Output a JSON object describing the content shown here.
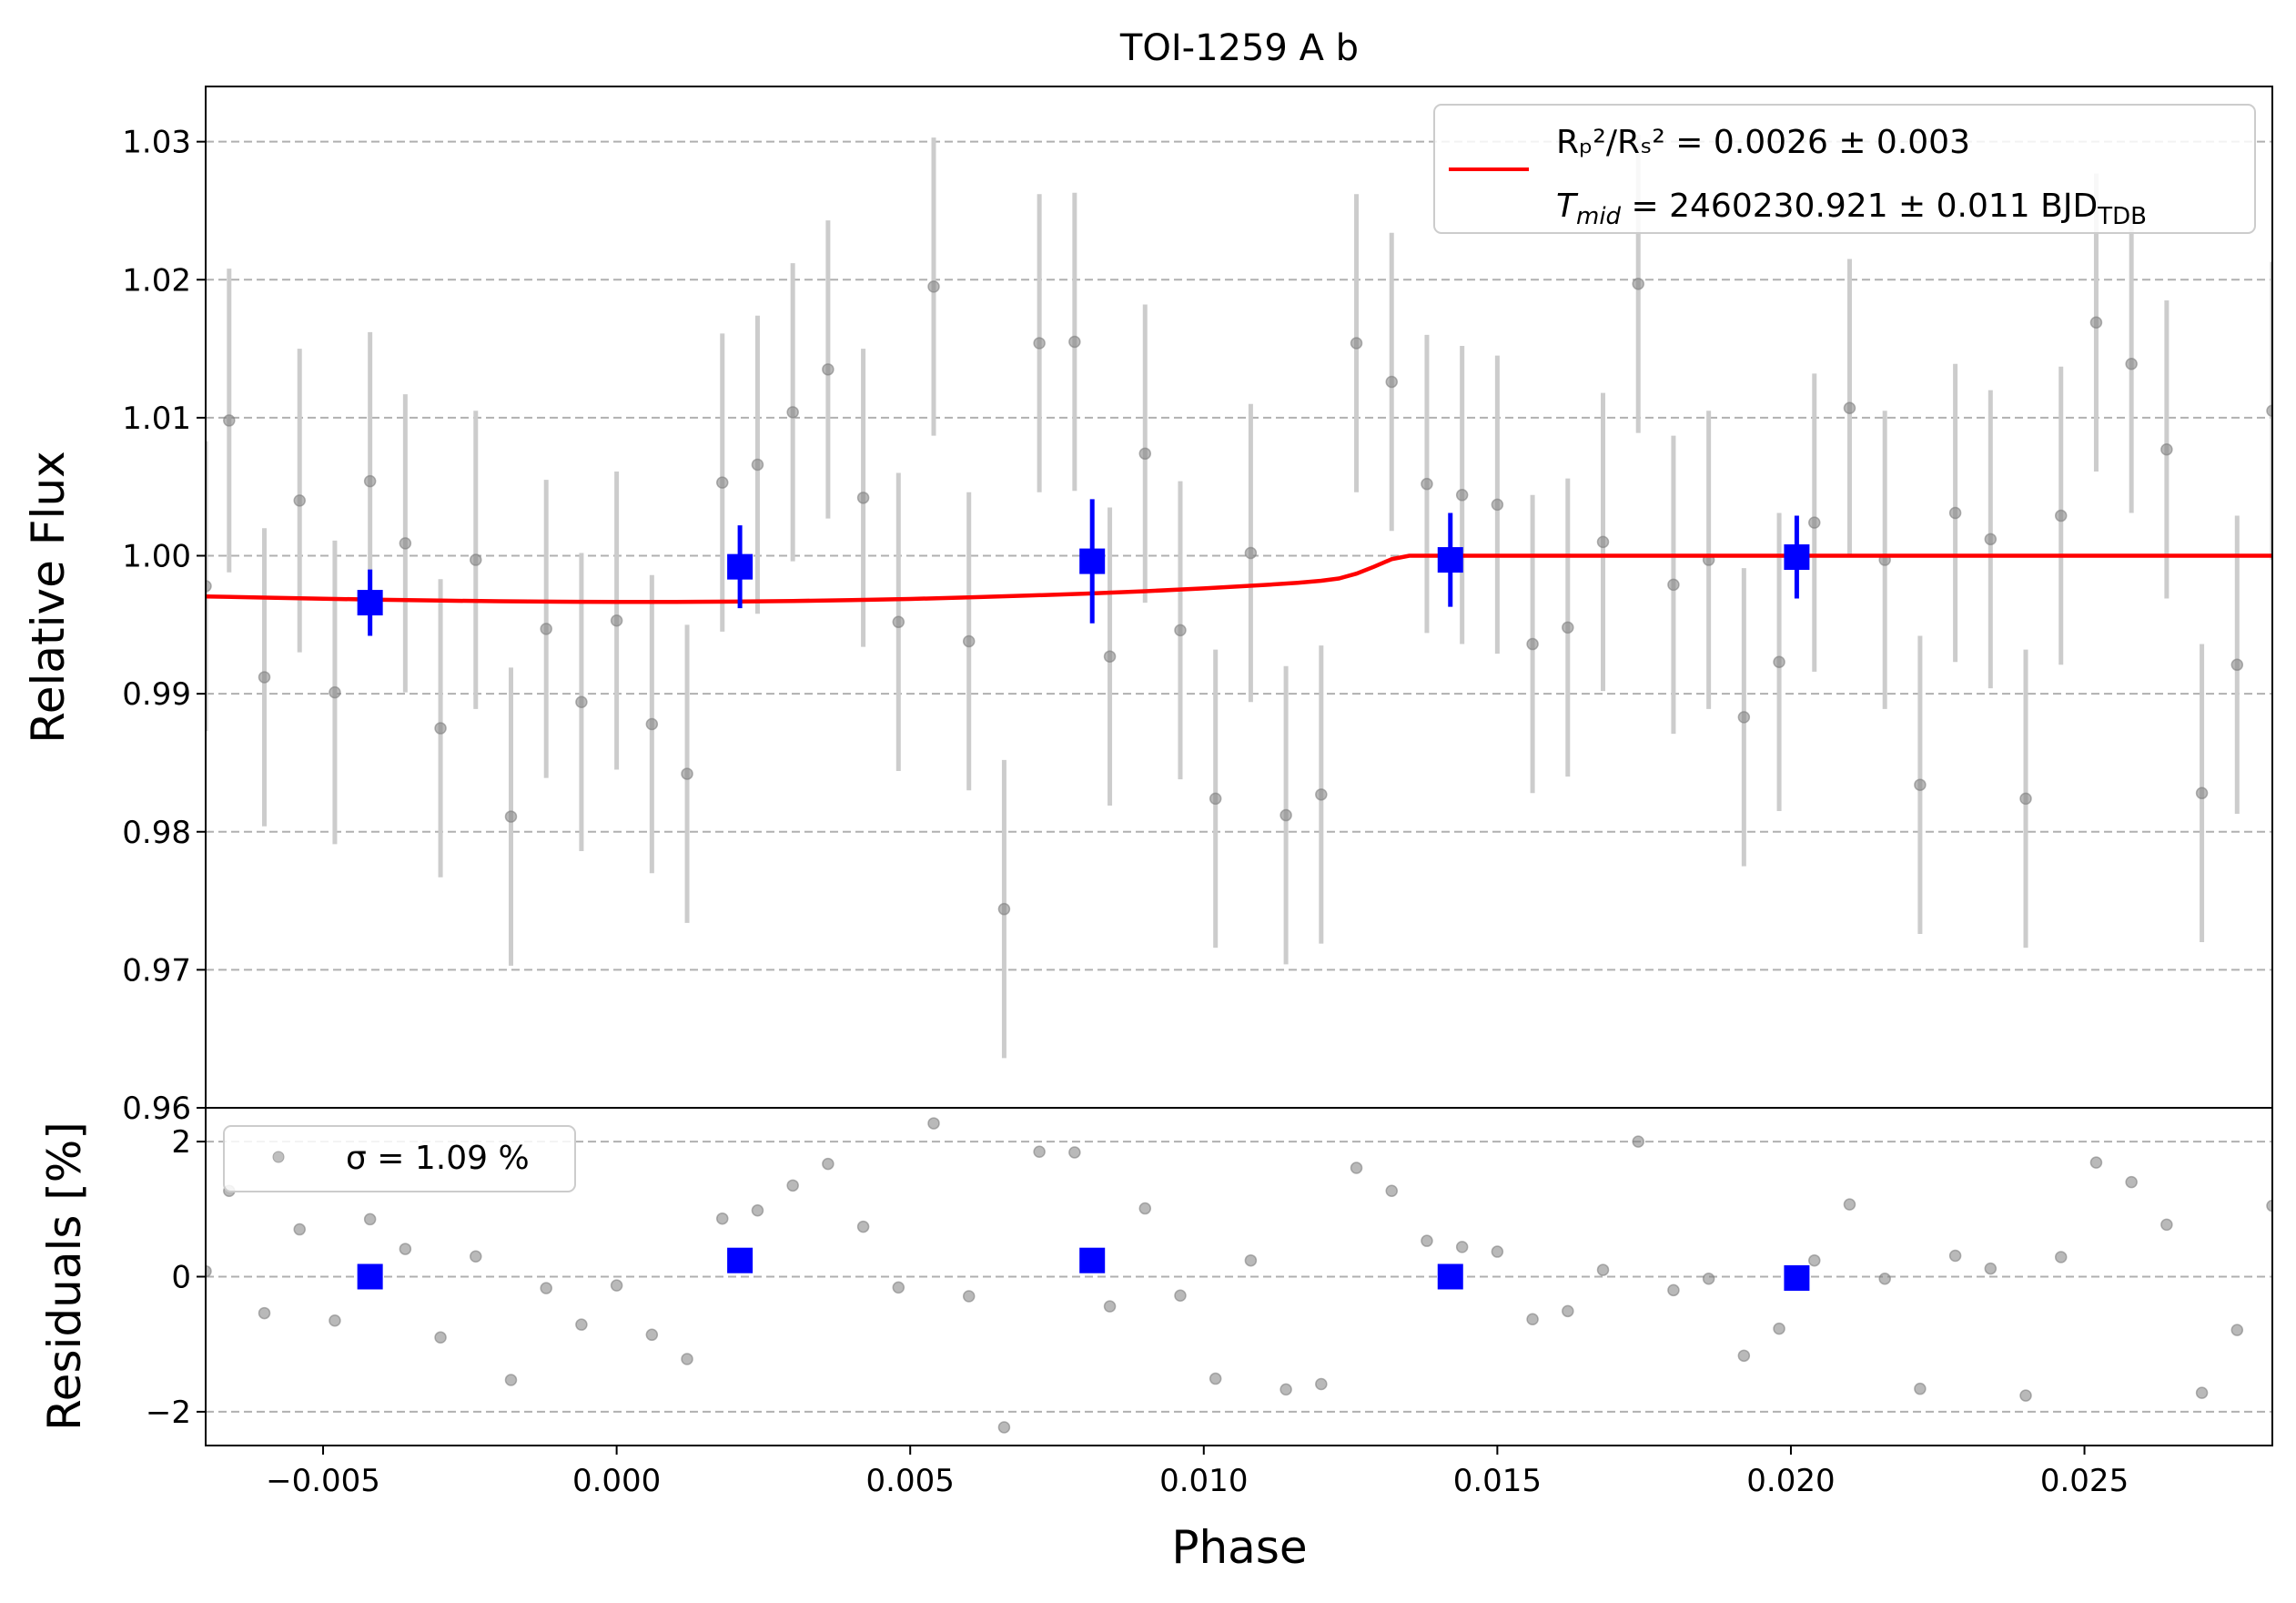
{
  "chart_data": [
    {
      "type": "scatter",
      "panel": "main",
      "title": "TOI-1259 A b",
      "xlabel": "",
      "ylabel": "Relative Flux",
      "xlim": [
        -0.007,
        0.0282
      ],
      "ylim": [
        0.96,
        1.034
      ],
      "yticks": [
        0.96,
        0.97,
        0.98,
        0.99,
        1.0,
        1.01,
        1.02,
        1.03
      ],
      "ytick_labels": [
        "0.96",
        "0.97",
        "0.98",
        "0.99",
        "1.00",
        "1.01",
        "1.02",
        "1.03"
      ],
      "grid": "horizontal dashed",
      "legend_position": "upper right",
      "legend": {
        "line1": "Rₚ²/Rₛ² = 0.0026 ± 0.003",
        "line2_prefix": "T",
        "line2_sub": "mid",
        "line2_mid": " = 2460230.921 ± 0.011 BJD",
        "line2_suffix_sub": "TDB"
      },
      "colors": {
        "data": "#808080",
        "errorbar": "#cccccc",
        "binned": "#0000ff",
        "model": "#ff0000",
        "grid": "#b0b0b0"
      },
      "data_points": {
        "x": [
          -0.007,
          -0.0066,
          -0.006,
          -0.0054,
          -0.0048,
          -0.0042,
          -0.0036,
          -0.003,
          -0.0024,
          -0.0018,
          -0.0012,
          -0.0006,
          0.0,
          0.0006,
          0.0012,
          0.0018,
          0.0024,
          0.003,
          0.0036,
          0.0042,
          0.0048,
          0.0054,
          0.006,
          0.0066,
          0.0072,
          0.0078,
          0.0084,
          0.009,
          0.0096,
          0.0102,
          0.0108,
          0.0114,
          0.012,
          0.0126,
          0.0132,
          0.0138,
          0.0144,
          0.015,
          0.0156,
          0.0162,
          0.0168,
          0.0174,
          0.018,
          0.0186,
          0.0192,
          0.0198,
          0.0204,
          0.021,
          0.0216,
          0.0222,
          0.0228,
          0.0234,
          0.024,
          0.0246,
          0.0252,
          0.0258,
          0.0264,
          0.027,
          0.0276,
          0.0282
        ],
        "y": [
          0.9978,
          1.0098,
          0.9912,
          1.004,
          0.9901,
          1.0054,
          1.0009,
          0.9875,
          0.9997,
          0.9811,
          0.9947,
          0.9894,
          0.9953,
          0.9878,
          0.9842,
          1.0053,
          1.0066,
          1.0104,
          1.0135,
          1.0042,
          0.9952,
          1.0195,
          0.9938,
          0.9744,
          1.0154,
          1.0155,
          0.9927,
          1.0074,
          0.9946,
          0.9824,
          1.0002,
          0.9812,
          0.9827,
          1.0154,
          1.0126,
          1.0052,
          1.0044,
          1.0037,
          0.9936,
          0.9948,
          1.001,
          1.0197,
          0.9979,
          0.9997,
          0.9883,
          0.9923,
          1.0024,
          1.0107,
          0.9997,
          0.9834,
          1.0031,
          1.0012,
          0.9824,
          1.0029,
          1.0169,
          1.0139,
          1.0077,
          0.9828,
          0.9921,
          1.0105
        ],
        "yerr": [
          0.0105,
          0.011,
          0.0108,
          0.011,
          0.011,
          0.0108,
          0.0108,
          0.0108,
          0.0108,
          0.0108,
          0.0108,
          0.0108,
          0.0108,
          0.0108,
          0.0108,
          0.0108,
          0.0108,
          0.0108,
          0.0108,
          0.0108,
          0.0108,
          0.0108,
          0.0108,
          0.0108,
          0.0108,
          0.0108,
          0.0108,
          0.0108,
          0.0108,
          0.0108,
          0.0108,
          0.0108,
          0.0108,
          0.0108,
          0.0108,
          0.0108,
          0.0108,
          0.0108,
          0.0108,
          0.0108,
          0.0108,
          0.0108,
          0.0108,
          0.0108,
          0.0108,
          0.0108,
          0.0108,
          0.0108,
          0.0108,
          0.0108,
          0.0108,
          0.0108,
          0.0108,
          0.0108,
          0.0108,
          0.0108,
          0.0108,
          0.0108,
          0.0108,
          0.0108
        ]
      },
      "binned_points": {
        "x": [
          -0.0042,
          0.0021,
          0.0081,
          0.0142,
          0.0201
        ],
        "y": [
          0.9966,
          0.9992,
          0.9996,
          0.9997,
          0.9999
        ],
        "yerr": [
          0.0024,
          0.003,
          0.0045,
          0.0034,
          0.003
        ]
      },
      "model_curve": {
        "x": [
          -0.007,
          -0.006,
          -0.005,
          -0.004,
          -0.003,
          -0.002,
          -0.001,
          0.0,
          0.001,
          0.002,
          0.003,
          0.004,
          0.005,
          0.006,
          0.007,
          0.008,
          0.009,
          0.01,
          0.011,
          0.0116,
          0.012,
          0.0123,
          0.0126,
          0.0129,
          0.0132,
          0.0135,
          0.014,
          0.015,
          0.02,
          0.025,
          0.0282
        ],
        "y": [
          0.99705,
          0.99697,
          0.99689,
          0.99681,
          0.99675,
          0.9967,
          0.99667,
          0.99666,
          0.99666,
          0.99668,
          0.99672,
          0.99678,
          0.99687,
          0.99698,
          0.99711,
          0.99726,
          0.99743,
          0.99763,
          0.99787,
          0.99804,
          0.99819,
          0.99835,
          0.9987,
          0.9992,
          0.99975,
          1.0,
          1.0,
          1.0,
          1.0,
          1.0,
          1.0
        ]
      }
    },
    {
      "type": "scatter",
      "panel": "residuals",
      "xlabel": "Phase",
      "ylabel": "Residuals [%]",
      "xlim": [
        -0.007,
        0.0282
      ],
      "ylim": [
        -2.5,
        2.5
      ],
      "yticks": [
        -2,
        0,
        2
      ],
      "ytick_labels": [
        "−2",
        "0",
        "2"
      ],
      "xticks": [
        -0.005,
        0.0,
        0.005,
        0.01,
        0.015,
        0.02,
        0.025
      ],
      "xtick_labels": [
        "−0.005",
        "0.000",
        "0.005",
        "0.010",
        "0.015",
        "0.020",
        "0.025"
      ],
      "grid": "horizontal dashed",
      "legend_position": "upper left",
      "legend": {
        "label": "σ = 1.09 %"
      },
      "residual_points": {
        "x": [
          -0.007,
          -0.0066,
          -0.006,
          -0.0054,
          -0.0048,
          -0.0042,
          -0.0036,
          -0.003,
          -0.0024,
          -0.0018,
          -0.0012,
          -0.0006,
          0.0,
          0.0006,
          0.0012,
          0.0018,
          0.0024,
          0.003,
          0.0036,
          0.0042,
          0.0048,
          0.0054,
          0.006,
          0.0066,
          0.0072,
          0.0078,
          0.0084,
          0.009,
          0.0096,
          0.0102,
          0.0108,
          0.0114,
          0.012,
          0.0126,
          0.0132,
          0.0138,
          0.0144,
          0.015,
          0.0156,
          0.0162,
          0.0168,
          0.0174,
          0.018,
          0.0186,
          0.0192,
          0.0198,
          0.0204,
          0.021,
          0.0216,
          0.0222,
          0.0228,
          0.0234,
          0.024,
          0.0246,
          0.0252,
          0.0258,
          0.0264,
          0.027,
          0.0276,
          0.0282
        ],
        "y": [
          0.08,
          1.27,
          -0.54,
          0.7,
          -0.65,
          0.85,
          0.41,
          -0.9,
          0.3,
          -1.53,
          -0.17,
          -0.71,
          -0.13,
          -0.86,
          -1.22,
          0.86,
          0.98,
          1.35,
          1.67,
          0.74,
          -0.16,
          2.27,
          -0.29,
          -2.23,
          1.85,
          1.84,
          -0.44,
          1.01,
          -0.28,
          -1.51,
          0.24,
          -1.67,
          -1.59,
          1.61,
          1.27,
          0.53,
          0.44,
          0.37,
          -0.63,
          -0.51,
          0.1,
          2.0,
          -0.2,
          -0.03,
          -1.17,
          -0.77,
          0.24,
          1.07,
          -0.03,
          -1.66,
          0.31,
          0.12,
          -1.76,
          0.29,
          1.69,
          1.4,
          0.77,
          -1.72,
          -0.79,
          1.05
        ]
      },
      "binned_points": {
        "x": [
          -0.0042,
          0.0021,
          0.0081,
          0.0142,
          0.0201
        ],
        "y": [
          0.0,
          0.24,
          0.24,
          0.0,
          -0.02
        ]
      }
    }
  ]
}
